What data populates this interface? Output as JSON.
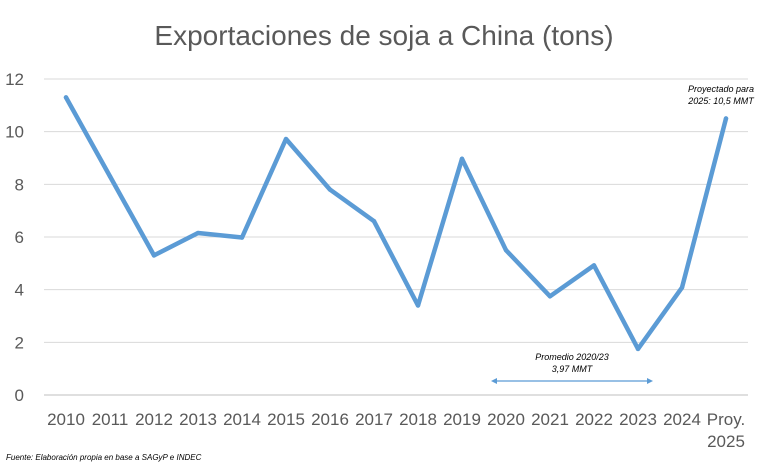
{
  "chart_data": {
    "type": "line",
    "title": "Exportaciones de soja a China (tons)",
    "xlabel": "",
    "ylabel": "",
    "categories": [
      [
        "2010"
      ],
      [
        "2011"
      ],
      [
        "2012"
      ],
      [
        "2013"
      ],
      [
        "2014"
      ],
      [
        "2015"
      ],
      [
        "2016"
      ],
      [
        "2017"
      ],
      [
        "2018"
      ],
      [
        "2019"
      ],
      [
        "2020"
      ],
      [
        "2021"
      ],
      [
        "2022"
      ],
      [
        "2023"
      ],
      [
        "2024"
      ],
      [
        "Proy.",
        "2025"
      ]
    ],
    "series": [
      {
        "values": [
          11.3,
          8.3,
          5.3,
          6.15,
          5.98,
          9.72,
          7.8,
          6.6,
          3.4,
          8.97,
          5.5,
          3.75,
          4.92,
          1.75,
          4.08,
          10.5
        ]
      }
    ],
    "ylim": [
      0,
      12
    ],
    "yticks": [
      "0",
      "2",
      "4",
      "6",
      "8",
      "10",
      "12"
    ],
    "grid": true,
    "legend": "none",
    "line_color": "#5b9bd5",
    "annotations": [
      {
        "lines": [
          "Proyectado para",
          "2025: 10,5 MMT"
        ],
        "target_category": "Proy. 2025"
      },
      {
        "lines": [
          "Promedio 2020/23",
          "3,97 MMT"
        ],
        "span": [
          "2020",
          "2023"
        ]
      }
    ],
    "source": "Fuente: Elaboración propia en base a SAGyP e INDEC"
  }
}
